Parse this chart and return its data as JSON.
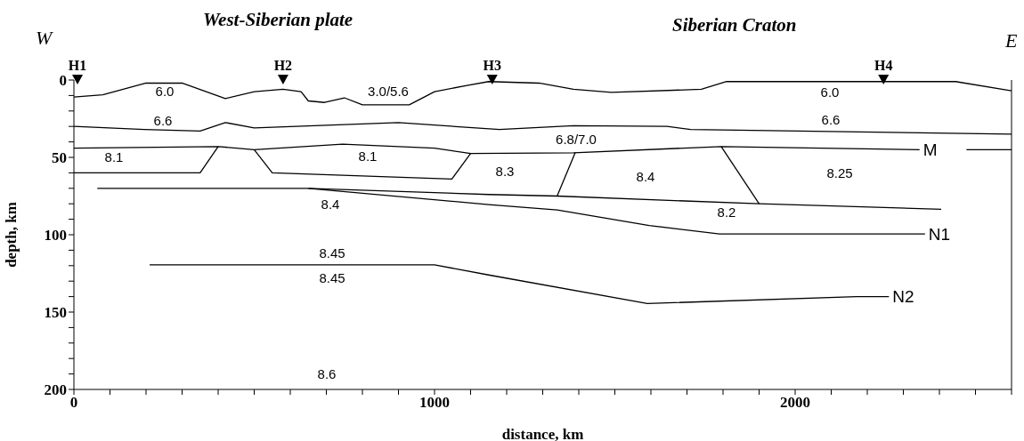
{
  "chart_data": {
    "type": "line",
    "xlabel": "distance, km",
    "ylabel": "depth, km",
    "xlim": [
      0,
      2600
    ],
    "xticks": [
      0,
      {
        "value": 100,
        "label": null
      },
      {
        "value": 200,
        "label": null
      },
      {
        "value": 300,
        "label": null
      },
      {
        "value": 400,
        "label": null
      },
      {
        "value": 500,
        "label": null
      },
      {
        "value": 600,
        "label": null
      },
      {
        "value": 700,
        "label": null
      },
      {
        "value": 800,
        "label": null
      },
      {
        "value": 900,
        "label": null
      },
      1000,
      {
        "value": 1100,
        "label": null
      },
      {
        "value": 1200,
        "label": null
      },
      {
        "value": 1300,
        "label": null
      },
      {
        "value": 1400,
        "label": null
      },
      {
        "value": 1500,
        "label": null
      },
      {
        "value": 1600,
        "label": null
      },
      {
        "value": 1700,
        "label": null
      },
      {
        "value": 1800,
        "label": null
      },
      {
        "value": 1900,
        "label": null
      },
      2000,
      {
        "value": 2100,
        "label": null
      },
      {
        "value": 2200,
        "label": null
      },
      {
        "value": 2300,
        "label": null
      },
      {
        "value": 2400,
        "label": null
      },
      {
        "value": 2500,
        "label": null
      },
      {
        "value": 2600,
        "label": null
      }
    ],
    "ylim": [
      200,
      0
    ],
    "yticks": [
      0,
      {
        "value": 10,
        "label": null
      },
      {
        "value": 20,
        "label": null
      },
      {
        "value": 30,
        "label": null
      },
      {
        "value": 40,
        "label": null
      },
      50,
      {
        "value": 60,
        "label": null
      },
      {
        "value": 70,
        "label": null
      },
      {
        "value": 80,
        "label": null
      },
      {
        "value": 90,
        "label": null
      },
      100,
      {
        "value": 110,
        "label": null
      },
      {
        "value": 120,
        "label": null
      },
      {
        "value": 130,
        "label": null
      },
      {
        "value": 140,
        "label": null
      },
      150,
      {
        "value": 160,
        "label": null
      },
      {
        "value": 170,
        "label": null
      },
      {
        "value": 180,
        "label": null
      },
      {
        "value": 190,
        "label": null
      },
      200
    ],
    "line_style": "solid",
    "series": [
      {
        "color": "#000000",
        "x": [
          0,
          80,
          200,
          300,
          420,
          500,
          580,
          630,
          650,
          695,
          750,
          800,
          930,
          1000,
          1090,
          1150,
          1290,
          1385,
          1490,
          1740,
          1810,
          2445,
          2600
        ],
        "values": [
          11,
          9.5,
          2,
          2,
          12,
          7.5,
          6,
          7.5,
          13.5,
          14.5,
          11.5,
          16,
          16,
          7.5,
          3.5,
          1,
          2,
          6,
          8,
          6,
          1,
          1,
          7
        ]
      },
      {
        "color": "#000000",
        "x": [
          0,
          195,
          350,
          420,
          500,
          900,
          1180,
          1385,
          1645,
          1710,
          2600
        ],
        "values": [
          30,
          32,
          33,
          27.5,
          31,
          27.5,
          32,
          29.5,
          30,
          32,
          35
        ]
      },
      {
        "name": "M",
        "color": "#000000",
        "x": [
          0,
          400,
          500,
          745,
          1000,
          1100,
          1385,
          1795,
          2345,
          2410,
          2475,
          2600
        ],
        "values": [
          44,
          43,
          45,
          41.5,
          44,
          47.5,
          47,
          43,
          45,
          null,
          45,
          45
        ]
      },
      {
        "color": "#000000",
        "x": [
          0,
          350,
          400,
          450,
          500,
          550,
          1048,
          1100
        ],
        "values": [
          60,
          60,
          43,
          null,
          45,
          60,
          64,
          47.5
        ]
      },
      {
        "color": "#000000",
        "x": [
          1390,
          1340
        ],
        "values": [
          47,
          75
        ]
      },
      {
        "color": "#000000",
        "x": [
          1795,
          1900
        ],
        "values": [
          43,
          80
        ]
      },
      {
        "color": "#000000",
        "x": [
          65,
          650,
          1150,
          1340,
          1900,
          2405
        ],
        "values": [
          70,
          70,
          74,
          75,
          80,
          83.5
        ]
      },
      {
        "name": "N1",
        "color": "#000000",
        "x": [
          650,
          1150,
          1340,
          1595,
          1790,
          2360
        ],
        "values": [
          70,
          80.5,
          84,
          94,
          99.5,
          99.5
        ]
      },
      {
        "name": "N2",
        "color": "#000000",
        "x": [
          210,
          1000,
          1150,
          1590,
          2170,
          2260
        ],
        "values": [
          119.5,
          119.5,
          126,
          144.5,
          140,
          140
        ]
      },
      {
        "type": "scatter",
        "marker": "triangle",
        "color": "#000000",
        "x": [
          10,
          580,
          1160,
          2245
        ],
        "values": [
          0,
          0,
          0,
          0
        ],
        "value_labels": [
          "H1",
          "H2",
          "H3",
          "H4"
        ]
      }
    ],
    "annotations": [
      "W",
      "West-Siberian plate",
      "Siberian Craton",
      "E",
      "6.0",
      "3.0/5.6",
      "6.0",
      "6.6",
      "6.6",
      "6.8/7.0",
      "8.1",
      "8.1",
      "8.3",
      "8.4",
      "8.25",
      "8.4",
      "8.2",
      "8.45",
      "8.45",
      "8.6"
    ]
  }
}
